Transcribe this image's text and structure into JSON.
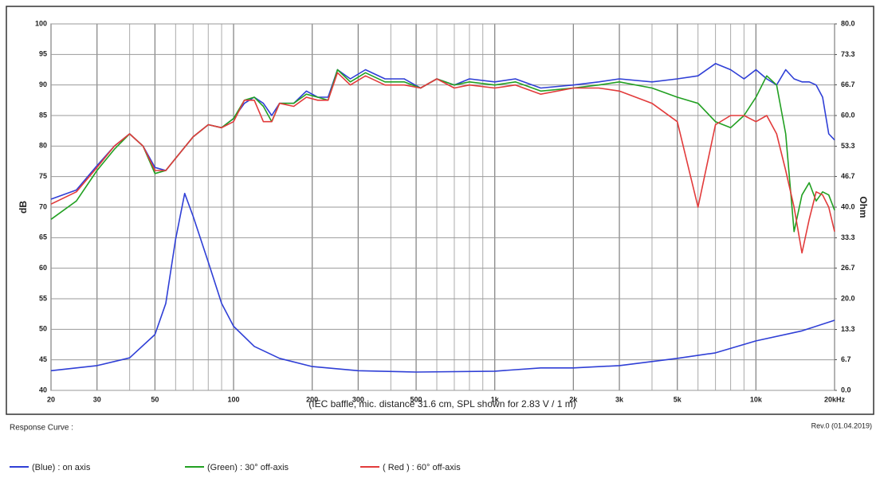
{
  "chart_data": {
    "type": "line",
    "xlog": true,
    "grid": true,
    "x_label": "(IEC baffle, mic. distance 31.6 cm, SPL shown for 2.83 V / 1 m)",
    "y_label": "dB",
    "y2_label": "Ohm",
    "legend_title": "Response Curve :",
    "revision": "Rev.0 (01.04.2019)",
    "xlim": [
      20,
      20000
    ],
    "xticks": [
      20,
      30,
      50,
      100,
      200,
      300,
      500,
      {
        "value": 1000,
        "label": "1k"
      },
      {
        "value": 2000,
        "label": "2k"
      },
      {
        "value": 3000,
        "label": "3k"
      },
      {
        "value": 5000,
        "label": "5k"
      },
      {
        "value": 10000,
        "label": "10k"
      },
      {
        "value": 20000,
        "label": "20kHz"
      }
    ],
    "x_minor_grid": [
      40,
      60,
      70,
      80,
      90,
      400,
      600,
      700,
      800,
      900,
      4000,
      6000,
      7000,
      8000,
      9000
    ],
    "ylim": [
      40,
      100
    ],
    "yticks": [
      40,
      45,
      50,
      55,
      60,
      65,
      70,
      75,
      80,
      85,
      90,
      95,
      100
    ],
    "y2lim": [
      0,
      80
    ],
    "y2ticks": [
      {
        "value": 0,
        "label": "0.0"
      },
      6.7,
      13.3,
      {
        "value": 20,
        "label": "20.0"
      },
      26.7,
      33.3,
      {
        "value": 40,
        "label": "40.0"
      },
      46.7,
      53.3,
      {
        "value": 60,
        "label": "60.0"
      },
      66.7,
      73.3,
      {
        "value": 80,
        "label": "80.0"
      }
    ],
    "x": [
      20,
      25,
      30,
      35,
      40,
      45,
      50,
      55,
      60,
      70,
      80,
      90,
      100,
      110,
      120,
      130,
      140,
      150,
      170,
      190,
      210,
      230,
      250,
      280,
      320,
      380,
      450,
      520,
      600,
      700,
      800,
      1000,
      1200,
      1500,
      2000,
      2500,
      3000,
      4000,
      5000,
      6000,
      7000,
      8000,
      9000,
      10000,
      11000,
      12000,
      13000,
      14000,
      15000,
      16000,
      17000,
      18000,
      19000,
      20000
    ],
    "series": [
      {
        "name": "(Blue)  : on axis",
        "color": "#2f3fd6",
        "values": [
          71.3,
          72.8,
          76.8,
          80,
          82,
          80,
          76.5,
          76,
          78,
          81.5,
          83.5,
          83,
          84.5,
          87,
          88,
          87,
          85,
          87,
          87,
          89,
          88,
          88,
          92.5,
          91,
          92.5,
          91,
          91,
          89.5,
          91,
          90,
          91,
          90.5,
          91,
          89.5,
          90,
          90.5,
          91,
          90.5,
          91,
          91.5,
          93.5,
          92.5,
          91,
          92.5,
          91,
          90,
          92.5,
          91,
          90.5,
          90.5,
          90,
          88,
          82,
          81
        ]
      },
      {
        "name": "(Green) : 30° off-axis",
        "color": "#22a022",
        "values": [
          68,
          71,
          76,
          79.5,
          82,
          80,
          75.5,
          76,
          78,
          81.5,
          83.5,
          83,
          84.5,
          87.5,
          88,
          86.5,
          84,
          87,
          87,
          88.5,
          88,
          87.5,
          92.5,
          90.5,
          92,
          90.5,
          90.5,
          89.5,
          91,
          90,
          90.5,
          90,
          90.5,
          89,
          89.5,
          90,
          90.5,
          89.5,
          88,
          87,
          84,
          83,
          85,
          88,
          91.5,
          90,
          82,
          66,
          72,
          74,
          71,
          72.5,
          72,
          69.5
        ]
      },
      {
        "name": "( Red ) : 60° off-axis",
        "color": "#e23b3b",
        "values": [
          70.5,
          72.5,
          76.5,
          80,
          82,
          80,
          76,
          76,
          78,
          81.5,
          83.5,
          83,
          84,
          87.5,
          87.5,
          84,
          84,
          87,
          86.5,
          88,
          87.5,
          87.5,
          92,
          90,
          91.5,
          90,
          90,
          89.5,
          91,
          89.5,
          90,
          89.5,
          90,
          88.5,
          89.5,
          89.5,
          89,
          87,
          84,
          70,
          83.5,
          85,
          85,
          84,
          85,
          82,
          76,
          70,
          62.5,
          68,
          72.5,
          72,
          70,
          66
        ]
      },
      {
        "axis": "y2",
        "color": "#2f3fd6",
        "x": [
          20,
          30,
          40,
          50,
          55,
          60,
          65,
          70,
          80,
          90,
          100,
          120,
          150,
          200,
          300,
          500,
          1000,
          1500,
          2000,
          3000,
          5000,
          7000,
          10000,
          15000,
          20000
        ],
        "values": [
          4.3,
          5.4,
          7.1,
          12.2,
          19,
          33,
          43,
          38,
          28,
          19,
          14,
          9.6,
          7,
          5.2,
          4.3,
          4,
          4.2,
          4.9,
          4.9,
          5.4,
          7,
          8.2,
          10.8,
          13,
          15.3
        ]
      }
    ]
  }
}
